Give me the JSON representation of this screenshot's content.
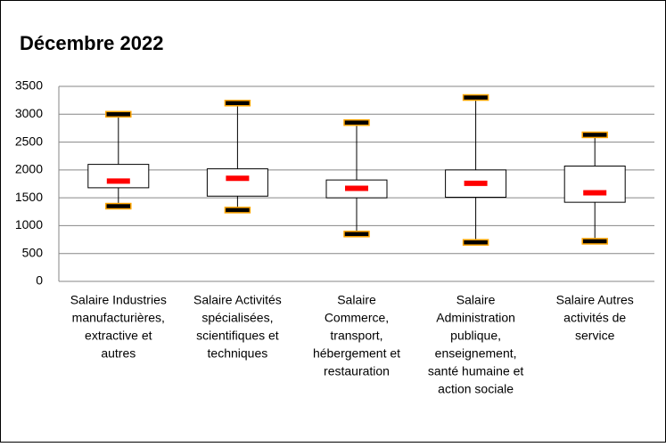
{
  "chart_data": {
    "type": "box",
    "title": "Décembre 2022",
    "categories": [
      [
        "Salaire Industries",
        "manufacturières,",
        "extractive et",
        "autres"
      ],
      [
        "Salaire Activités",
        "spécialisées,",
        "scientifiques et",
        "techniques"
      ],
      [
        "Salaire",
        "Commerce,",
        "transport,",
        "hébergement et",
        "restauration"
      ],
      [
        "Salaire",
        "Administration",
        "publique,",
        "enseignement,",
        "santé humaine et",
        "action sociale"
      ],
      [
        "Salaire Autres",
        "activités de",
        "service"
      ]
    ],
    "min": [
      1350,
      1280,
      850,
      700,
      720
    ],
    "q1": [
      1680,
      1530,
      1500,
      1510,
      1420
    ],
    "median": [
      1800,
      1850,
      1670,
      1760,
      1590
    ],
    "q3": [
      2100,
      2020,
      1820,
      2000,
      2070
    ],
    "max": [
      3000,
      3200,
      2850,
      3300,
      2630
    ],
    "box_color": "#ffffff",
    "median_color": "#ff0000",
    "cap_color": "#000000",
    "cap_edge_color": "#ffa500",
    "ylim": [
      0,
      3500
    ],
    "yticks": [
      0,
      500,
      1000,
      1500,
      2000,
      2500,
      3000,
      3500
    ],
    "grid": true
  }
}
